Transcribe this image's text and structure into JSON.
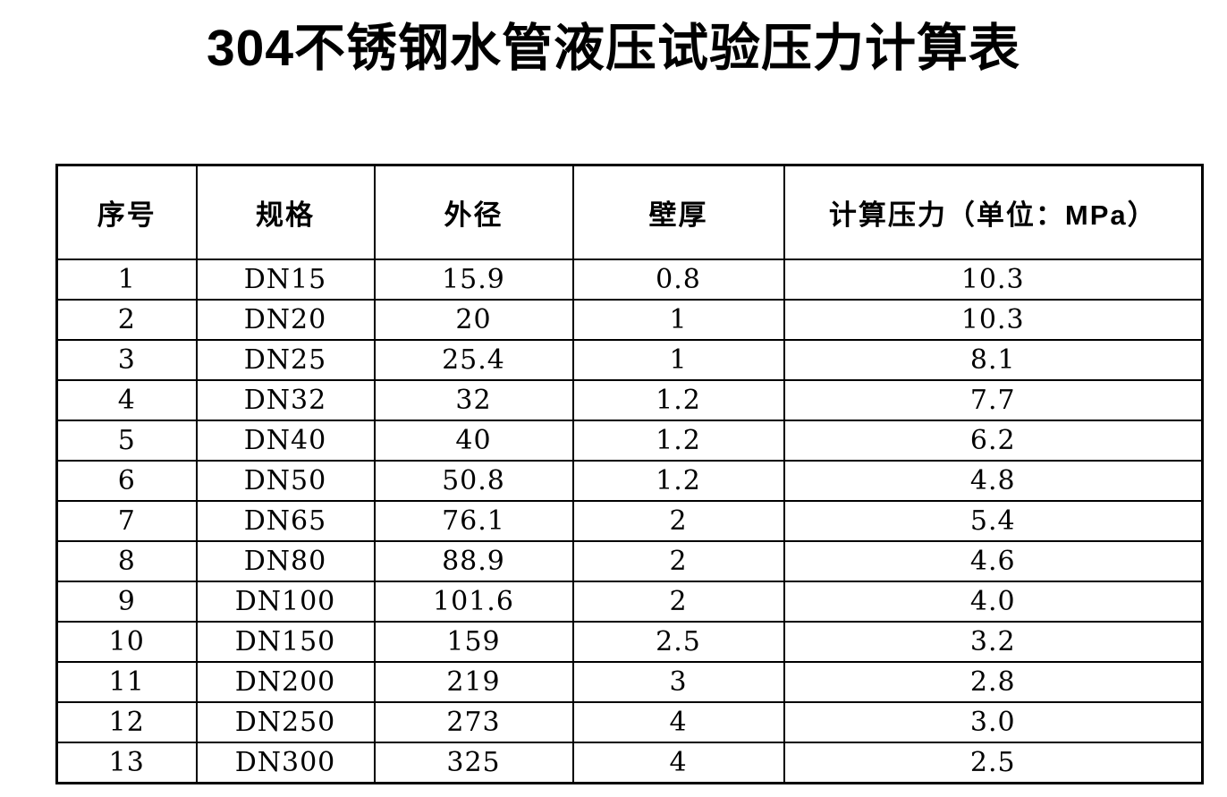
{
  "page": {
    "background": "#ffffff",
    "text_color": "#000000",
    "border_color": "#000000"
  },
  "title": "304不锈钢水管液压试验压力计算表",
  "table": {
    "headers": [
      "序号",
      "规格",
      "外径",
      "壁厚",
      "计算压力（单位：MPa）"
    ],
    "rows": [
      [
        "1",
        "DN15",
        "15.9",
        "0.8",
        "10.3"
      ],
      [
        "2",
        "DN20",
        "20",
        "1",
        "10.3"
      ],
      [
        "3",
        "DN25",
        "25.4",
        "1",
        "8.1"
      ],
      [
        "4",
        "DN32",
        "32",
        "1.2",
        "7.7"
      ],
      [
        "5",
        "DN40",
        "40",
        "1.2",
        "6.2"
      ],
      [
        "6",
        "DN50",
        "50.8",
        "1.2",
        "4.8"
      ],
      [
        "7",
        "DN65",
        "76.1",
        "2",
        "5.4"
      ],
      [
        "8",
        "DN80",
        "88.9",
        "2",
        "4.6"
      ],
      [
        "9",
        "DN100",
        "101.6",
        "2",
        "4.0"
      ],
      [
        "10",
        "DN150",
        "159",
        "2.5",
        "3.2"
      ],
      [
        "11",
        "DN200",
        "219",
        "3",
        "2.8"
      ],
      [
        "12",
        "DN250",
        "273",
        "4",
        "3.0"
      ],
      [
        "13",
        "DN300",
        "325",
        "4",
        "2.5"
      ]
    ]
  }
}
